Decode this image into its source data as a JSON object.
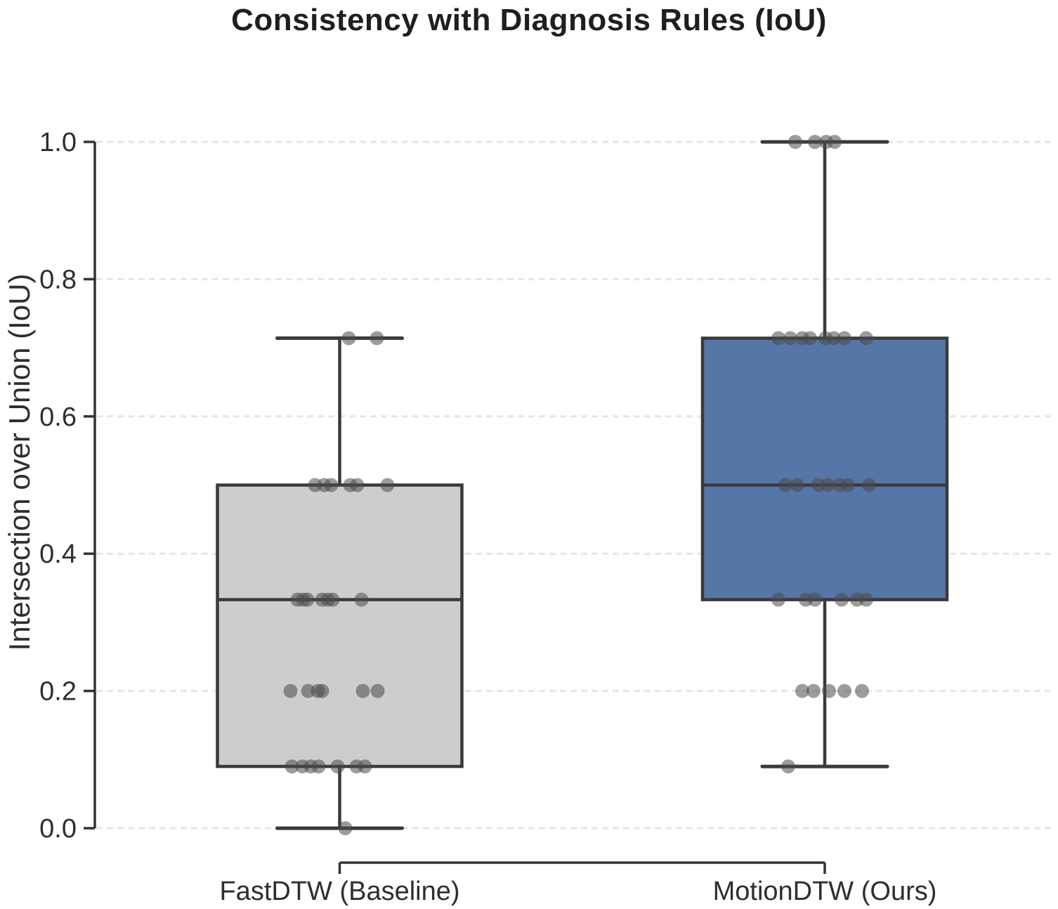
{
  "chart_data": {
    "type": "boxplot",
    "title": "Consistency with Diagnosis Rules (IoU)",
    "ylabel": "Intersection over Union (IoU)",
    "xlabel": "",
    "categories": [
      "FastDTW (Baseline)",
      "MotionDTW (Ours)"
    ],
    "ylim": [
      -0.05,
      1.04
    ],
    "yticks": [
      0.0,
      0.2,
      0.4,
      0.6,
      0.8,
      1.0
    ],
    "ytick_labels": [
      "0.0",
      "0.2",
      "0.4",
      "0.6",
      "0.8",
      "1.0"
    ],
    "grid": "horizontal-dashed",
    "legend": "none",
    "series": [
      {
        "name": "FastDTW (Baseline)",
        "box": {
          "whisker_low": 0.0,
          "q1": 0.09,
          "median": 0.333,
          "q3": 0.5,
          "whisker_high": 0.714
        },
        "points": [
          {
            "v": 0.714,
            "dx": 13
          },
          {
            "v": 0.714,
            "dx": 53
          },
          {
            "v": 0.5,
            "dx": -35
          },
          {
            "v": 0.5,
            "dx": -22
          },
          {
            "v": 0.5,
            "dx": -12
          },
          {
            "v": 0.5,
            "dx": 15
          },
          {
            "v": 0.5,
            "dx": 25
          },
          {
            "v": 0.5,
            "dx": 68
          },
          {
            "v": 0.333,
            "dx": -60
          },
          {
            "v": 0.333,
            "dx": -52
          },
          {
            "v": 0.333,
            "dx": -46
          },
          {
            "v": 0.333,
            "dx": -25
          },
          {
            "v": 0.333,
            "dx": -17
          },
          {
            "v": 0.333,
            "dx": -10
          },
          {
            "v": 0.333,
            "dx": 31
          },
          {
            "v": 0.2,
            "dx": -70
          },
          {
            "v": 0.2,
            "dx": -45
          },
          {
            "v": 0.2,
            "dx": -31
          },
          {
            "v": 0.2,
            "dx": -25
          },
          {
            "v": 0.2,
            "dx": 33
          },
          {
            "v": 0.2,
            "dx": 54
          },
          {
            "v": 0.09,
            "dx": -68
          },
          {
            "v": 0.09,
            "dx": -53
          },
          {
            "v": 0.09,
            "dx": -41
          },
          {
            "v": 0.09,
            "dx": -30
          },
          {
            "v": 0.09,
            "dx": -3
          },
          {
            "v": 0.09,
            "dx": 24
          },
          {
            "v": 0.09,
            "dx": 36
          },
          {
            "v": 0.0,
            "dx": 8
          }
        ]
      },
      {
        "name": "MotionDTW (Ours)",
        "box": {
          "whisker_low": 0.09,
          "q1": 0.333,
          "median": 0.5,
          "q3": 0.714,
          "whisker_high": 1.0
        },
        "points": [
          {
            "v": 1.0,
            "dx": -42
          },
          {
            "v": 1.0,
            "dx": -14
          },
          {
            "v": 1.0,
            "dx": 2
          },
          {
            "v": 1.0,
            "dx": 14
          },
          {
            "v": 0.714,
            "dx": -66
          },
          {
            "v": 0.714,
            "dx": -49
          },
          {
            "v": 0.714,
            "dx": -32
          },
          {
            "v": 0.714,
            "dx": -21
          },
          {
            "v": 0.714,
            "dx": 1
          },
          {
            "v": 0.714,
            "dx": 13
          },
          {
            "v": 0.714,
            "dx": 28
          },
          {
            "v": 0.714,
            "dx": 59
          },
          {
            "v": 0.5,
            "dx": -56
          },
          {
            "v": 0.5,
            "dx": -39
          },
          {
            "v": 0.5,
            "dx": -9
          },
          {
            "v": 0.5,
            "dx": 4
          },
          {
            "v": 0.5,
            "dx": 21
          },
          {
            "v": 0.5,
            "dx": 33
          },
          {
            "v": 0.5,
            "dx": 63
          },
          {
            "v": 0.333,
            "dx": -66
          },
          {
            "v": 0.333,
            "dx": -27
          },
          {
            "v": 0.333,
            "dx": -14
          },
          {
            "v": 0.333,
            "dx": 24
          },
          {
            "v": 0.333,
            "dx": 46
          },
          {
            "v": 0.333,
            "dx": 59
          },
          {
            "v": 0.2,
            "dx": -32
          },
          {
            "v": 0.2,
            "dx": -16
          },
          {
            "v": 0.2,
            "dx": 6
          },
          {
            "v": 0.2,
            "dx": 28
          },
          {
            "v": 0.2,
            "dx": 53
          },
          {
            "v": 0.09,
            "dx": -52
          }
        ]
      }
    ],
    "colors": {
      "box_fill_baseline": "#cdcdcd",
      "box_fill_ours": "#5676a8",
      "box_edge": "#3a3a3a",
      "whisker": "#3a3a3a",
      "point": "#4a4a4a",
      "grid": "#e6e6e6",
      "spine": "#333333",
      "text": "#2e2e2e",
      "title_text": "#1f1f1f"
    }
  }
}
